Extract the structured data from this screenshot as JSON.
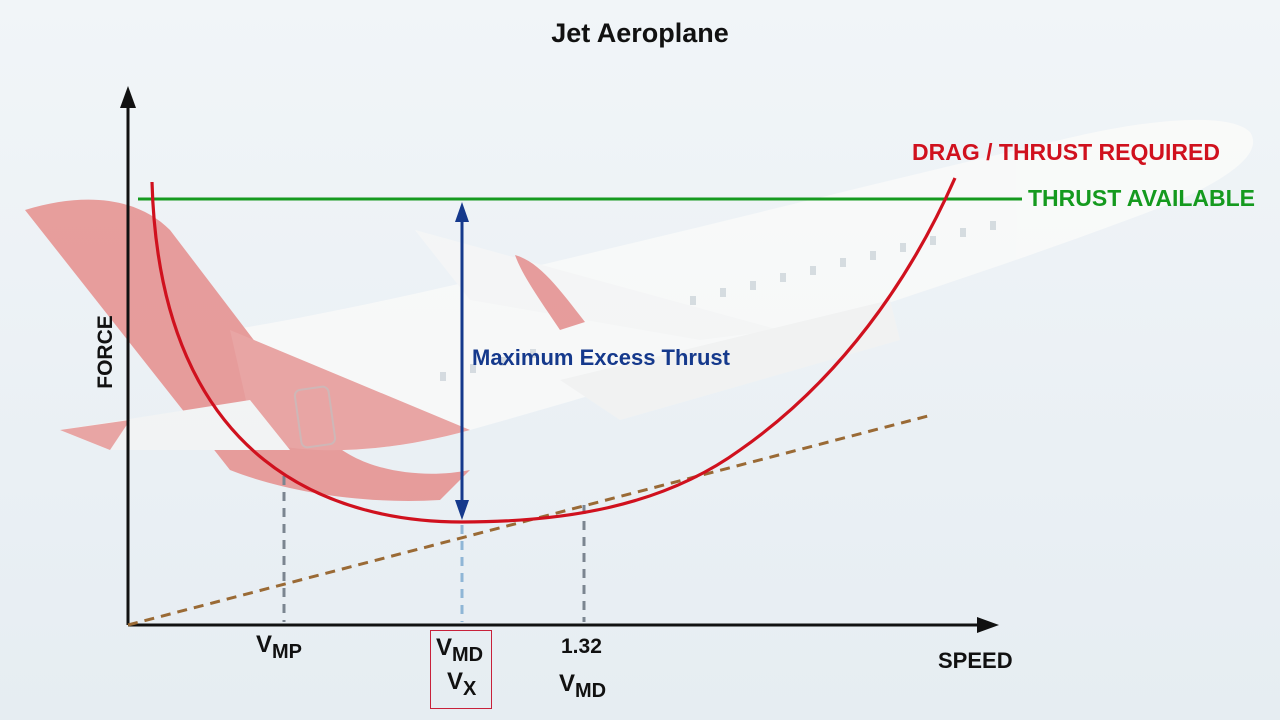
{
  "title": "Jet Aeroplane",
  "axes": {
    "y_label": "FORCE",
    "x_label": "SPEED"
  },
  "curves": {
    "drag_label": "DRAG / THRUST REQUIRED",
    "thrust_label": "THRUST AVAILABLE",
    "excess_label": "Maximum Excess Thrust"
  },
  "speed_labels": {
    "vmp": {
      "main": "V",
      "sub": "MP"
    },
    "vmd": {
      "main": "V",
      "sub": "MD"
    },
    "vx": {
      "main": "V",
      "sub": "X"
    },
    "factor": "1.32",
    "vmd2": {
      "main": "V",
      "sub": "MD"
    }
  },
  "colors": {
    "drag": "#d0111e",
    "thrust": "#159a1f",
    "excess": "#15398c",
    "tangent": "#9a6a35",
    "dropline": "#7b8590",
    "highlight_box": "#c8213a",
    "aircraft_red": "#e58583",
    "aircraft_white": "#fbfbfa"
  },
  "icons": {
    "background": "aircraft-illustration",
    "axis_arrows": "arrowhead"
  }
}
